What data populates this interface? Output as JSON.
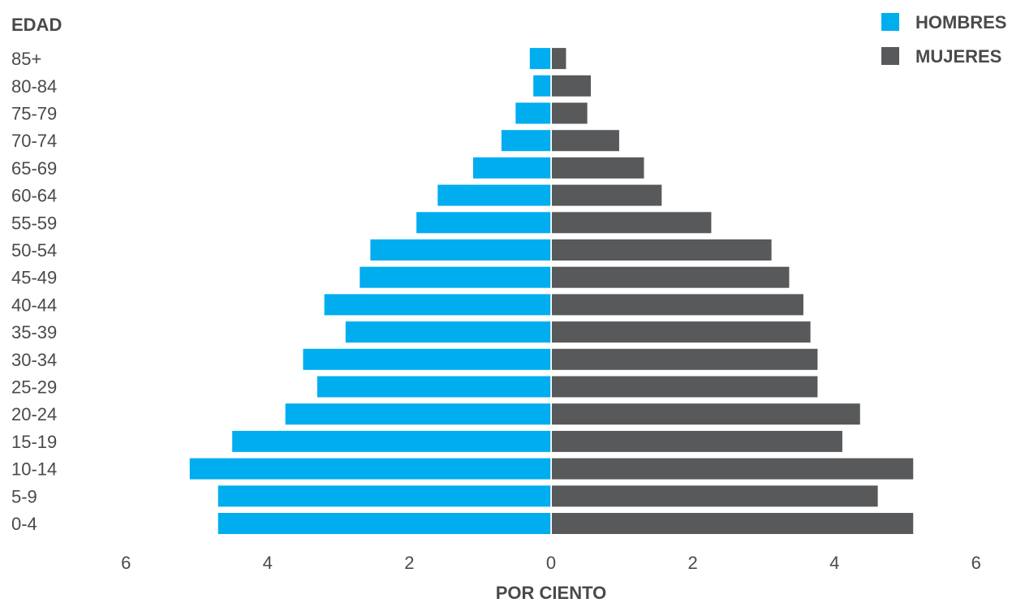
{
  "chart_data": {
    "type": "bar",
    "orientation": "horizontal",
    "chart_subtype": "population-pyramid",
    "ylabel": "EDAD",
    "xlabel": "POR CIENTO",
    "xlim": [
      -6,
      6
    ],
    "x_ticks": [
      "6",
      "4",
      "2",
      "0",
      "2",
      "4",
      "6"
    ],
    "x_tick_values": [
      -6,
      -4,
      -2,
      0,
      2,
      4,
      6
    ],
    "grid": false,
    "legend_position": "top-right",
    "categories": [
      "0-4",
      "5-9",
      "10-14",
      "15-19",
      "20-24",
      "25-29",
      "30-34",
      "35-39",
      "40-44",
      "45-49",
      "50-54",
      "55-59",
      "60-64",
      "65-69",
      "70-74",
      "75-79",
      "80-84",
      "85+"
    ],
    "series": [
      {
        "name": "HOMBRES",
        "color": "#00adef",
        "side": "left",
        "values": [
          4.7,
          4.7,
          5.1,
          4.5,
          3.75,
          3.3,
          3.5,
          2.9,
          3.2,
          2.7,
          2.55,
          1.9,
          1.6,
          1.1,
          0.7,
          0.5,
          0.25,
          0.3
        ]
      },
      {
        "name": "MUJERES",
        "color": "#58595b",
        "side": "right",
        "values": [
          5.1,
          4.6,
          5.1,
          4.1,
          4.35,
          3.75,
          3.75,
          3.65,
          3.55,
          3.35,
          3.1,
          2.25,
          1.55,
          1.3,
          0.95,
          0.5,
          0.55,
          0.2
        ]
      }
    ]
  }
}
